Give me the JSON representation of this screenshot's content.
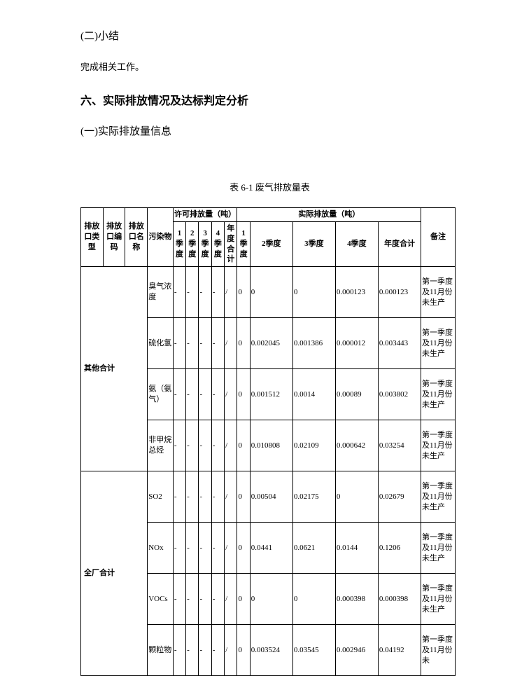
{
  "headings": {
    "sub1": "(二)小结",
    "body1": "完成相关工作。",
    "main": "六、实际排放情况及达标判定分析",
    "sub2": "(一)实际排放量信息",
    "tableTitle": "表 6-1  废气排放量表"
  },
  "tableHeaders": {
    "outletType": "排放口类型",
    "outletCode": "排放口编码",
    "outletName": "排放口名称",
    "pollutant": "污染物",
    "permittedGroup": "许可排放量（吨）",
    "actualGroup": "实际排放量（吨）",
    "remark": "备注",
    "q1": "1季度",
    "q2": "2季度",
    "q3": "3季度",
    "q4": "4季度",
    "yearTotal": "年度合计",
    "q1v": "1季度",
    "q2v": "2季度",
    "q3v": "3季度",
    "q4v": "4季度",
    "yearTotalV": "年度合计"
  },
  "groups": [
    {
      "label": "其他合计",
      "rows": [
        {
          "pollutant": "臭气浓度",
          "p1": "-",
          "p2": "-",
          "p3": "-",
          "p4": "-",
          "pyr": "/",
          "a1": "0",
          "a2": "0",
          "a3": "0",
          "a4": "0.000123",
          "ayr": "0.000123",
          "note": "第一季度及11月份未生产"
        },
        {
          "pollutant": "硫化氢",
          "p1": "-",
          "p2": "-",
          "p3": "-",
          "p4": "-",
          "pyr": "/",
          "a1": "0",
          "a2": "0.002045",
          "a3": "0.001386",
          "a4": "0.000012",
          "ayr": "0.003443",
          "note": "第一季度及11月份未生产"
        },
        {
          "pollutant": "氨（氨气）",
          "p1": "-",
          "p2": "-",
          "p3": "-",
          "p4": "-",
          "pyr": "/",
          "a1": "0",
          "a2": "0.001512",
          "a3": "0.0014",
          "a4": "0.00089",
          "ayr": "0.003802",
          "note": "第一季度及11月份未生产"
        },
        {
          "pollutant": "非甲烷总烃",
          "p1": "-",
          "p2": "-",
          "p3": "-",
          "p4": "-",
          "pyr": "/",
          "a1": "0",
          "a2": "0.010808",
          "a3": "0.02109",
          "a4": "0.000642",
          "ayr": "0.03254",
          "note": "第一季度及11月份未生产"
        }
      ]
    },
    {
      "label": "全厂合计",
      "rows": [
        {
          "pollutant": "SO2",
          "p1": "-",
          "p2": "-",
          "p3": "-",
          "p4": "-",
          "pyr": "/",
          "a1": "0",
          "a2": "0.00504",
          "a3": "0.02175",
          "a4": "0",
          "ayr": "0.02679",
          "note": "第一季度及11月份未生产"
        },
        {
          "pollutant": "NOx",
          "p1": "-",
          "p2": "-",
          "p3": "-",
          "p4": "-",
          "pyr": "/",
          "a1": "0",
          "a2": "0.0441",
          "a3": "0.0621",
          "a4": "0.0144",
          "ayr": "0.1206",
          "note": "第一季度及11月份未生产"
        },
        {
          "pollutant": "VOCs",
          "p1": "-",
          "p2": "-",
          "p3": "-",
          "p4": "-",
          "pyr": "/",
          "a1": "0",
          "a2": "0",
          "a3": "0",
          "a4": "0.000398",
          "ayr": "0.000398",
          "note": "第一季度及11月份未生产"
        },
        {
          "pollutant": "颗粒物",
          "p1": "-",
          "p2": "-",
          "p3": "-",
          "p4": "-",
          "pyr": "/",
          "a1": "0",
          "a2": "0.003524",
          "a3": "0.03545",
          "a4": "0.002946",
          "ayr": "0.04192",
          "note": "第一季度及11月份未"
        }
      ]
    }
  ]
}
